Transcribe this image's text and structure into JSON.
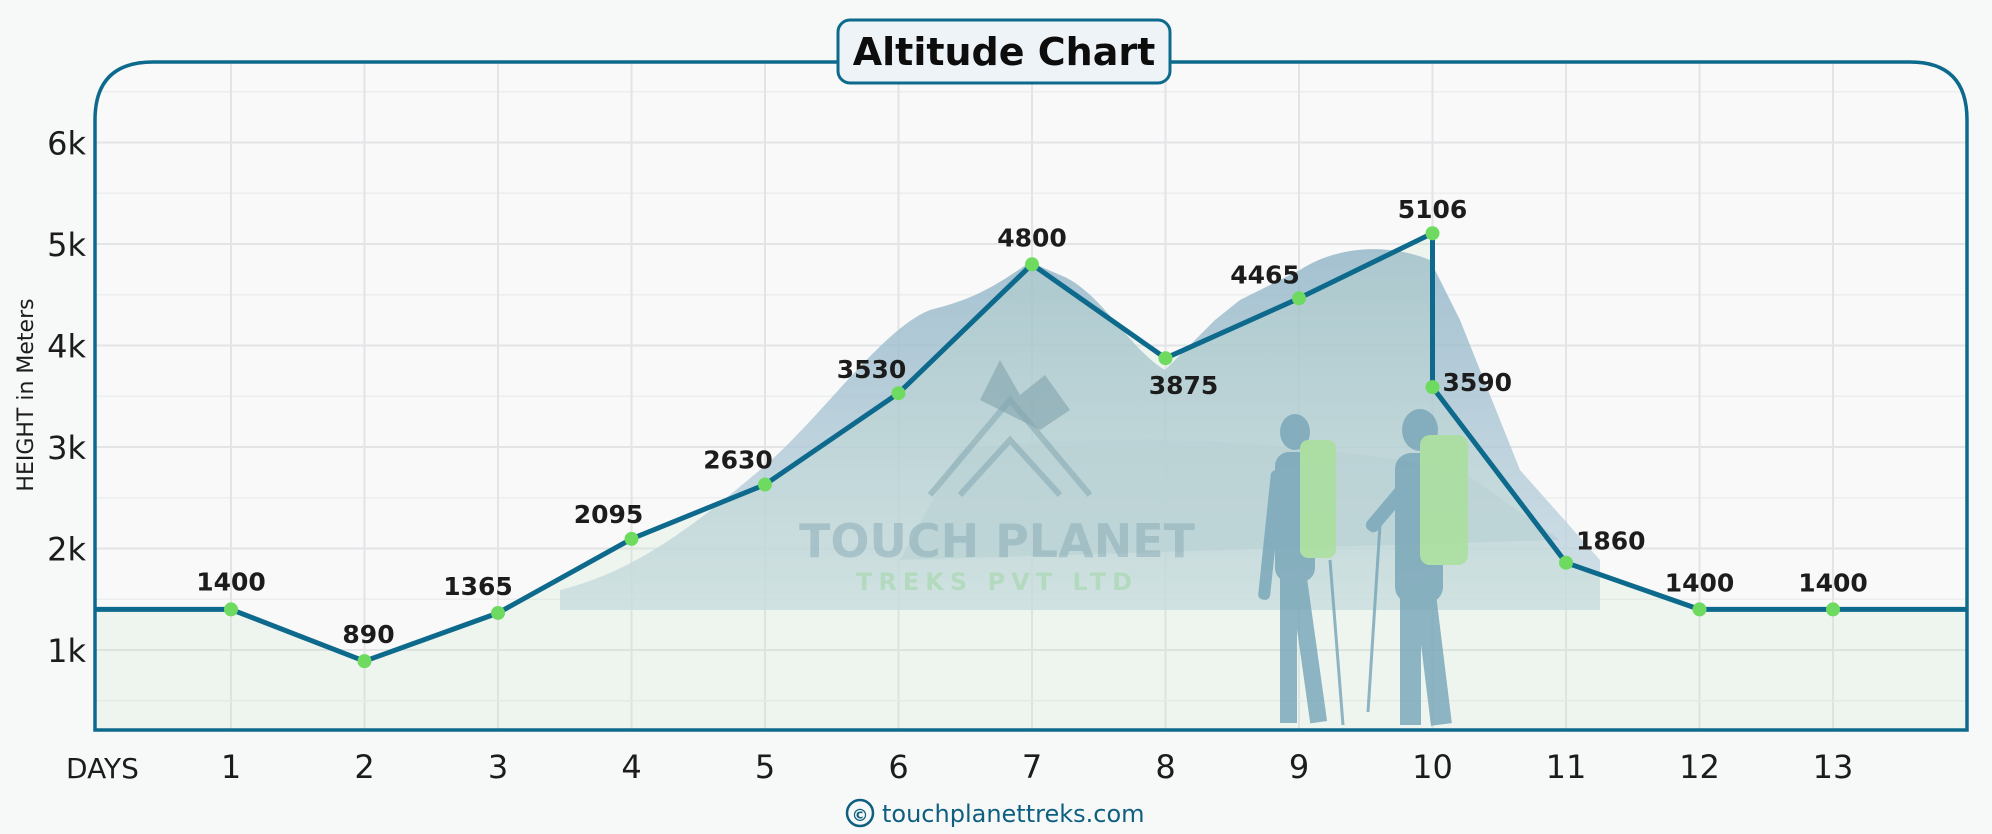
{
  "chart_data": {
    "type": "line",
    "title": "Altitude Chart",
    "xlabel": "DAYS",
    "ylabel": "HEIGHT in Meters",
    "ylim": [
      250,
      6600
    ],
    "y_ticks": [
      {
        "value": 1000,
        "label": "1k"
      },
      {
        "value": 2000,
        "label": "2k"
      },
      {
        "value": 3000,
        "label": "3k"
      },
      {
        "value": 4000,
        "label": "4k"
      },
      {
        "value": 5000,
        "label": "5k"
      },
      {
        "value": 6000,
        "label": "6k"
      }
    ],
    "x_ticks": [
      1,
      2,
      3,
      4,
      5,
      6,
      7,
      8,
      9,
      10,
      11,
      12,
      13
    ],
    "points": [
      {
        "x": 1,
        "y": 1400,
        "label": "1400"
      },
      {
        "x": 2,
        "y": 890,
        "label": "890"
      },
      {
        "x": 3,
        "y": 1365,
        "label": "1365"
      },
      {
        "x": 4,
        "y": 2095,
        "label": "2095"
      },
      {
        "x": 5,
        "y": 2630,
        "label": "2630"
      },
      {
        "x": 6,
        "y": 3530,
        "label": "3530"
      },
      {
        "x": 7,
        "y": 4800,
        "label": "4800"
      },
      {
        "x": 8,
        "y": 3875,
        "label": "3875"
      },
      {
        "x": 9,
        "y": 4465,
        "label": "4465"
      },
      {
        "x": 10,
        "y": 5106,
        "label": "5106"
      },
      {
        "x": 10,
        "y": 3590,
        "label": "3590"
      },
      {
        "x": 11,
        "y": 1860,
        "label": "1860"
      },
      {
        "x": 12,
        "y": 1400,
        "label": "1400"
      },
      {
        "x": 13,
        "y": 1400,
        "label": "1400"
      }
    ],
    "grid": true,
    "colors": {
      "line": "#0e6a8c",
      "marker": "#6edb60",
      "frame": "#0e6a8c"
    }
  },
  "watermark": {
    "brand": "TOUCH PLANET",
    "sub": "TREKS PVT LTD"
  },
  "footer": {
    "copyright_icon": "©",
    "website": "touchplanettreks.com"
  }
}
